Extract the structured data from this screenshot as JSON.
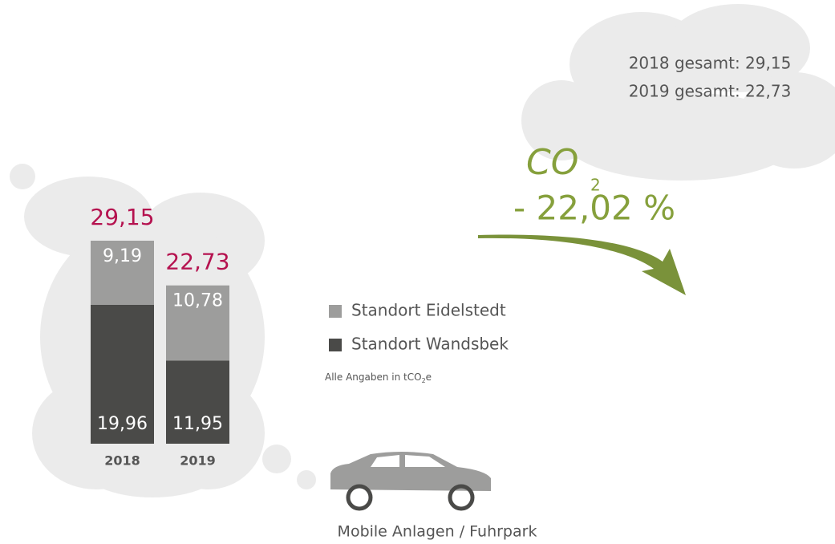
{
  "chart_data": {
    "type": "stacked_bar",
    "categories": [
      "2018",
      "2019"
    ],
    "series": [
      {
        "name": "Standort Wandsbek",
        "color": "#4a4a48",
        "values": [
          19.96,
          11.95
        ],
        "value_labels": [
          "19,96",
          "11,95"
        ]
      },
      {
        "name": "Standort Eidelstedt",
        "color": "#9d9d9c",
        "values": [
          9.19,
          10.78
        ],
        "value_labels": [
          "9,19",
          "10,78"
        ]
      }
    ],
    "total_labels": [
      "29,15",
      "22,73"
    ],
    "ylim": [
      0,
      30
    ],
    "note": {
      "prefix": "Alle Angaben in tCO",
      "sub": "2",
      "suffix": "e"
    },
    "totals_text": [
      "2018 gesamt: 29,15",
      "2019 gesamt: 22,73"
    ],
    "change": {
      "co": "CO",
      "sub": "2",
      "text": "- 22,02 %"
    },
    "caption": "Mobile Anlagen / Fuhrpark"
  }
}
